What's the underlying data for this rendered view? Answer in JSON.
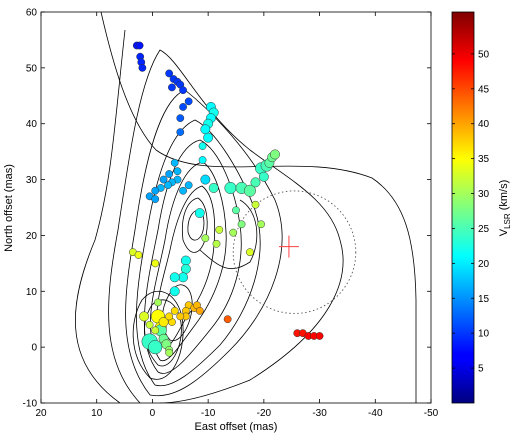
{
  "chart_data": {
    "type": "scatter",
    "xlabel": "East offset (mas)",
    "ylabel": "North offset (mas)",
    "xlim": [
      20,
      -50
    ],
    "ylim": [
      -10,
      60
    ],
    "xticks": [
      20,
      10,
      0,
      -10,
      -20,
      -30,
      -40,
      -50
    ],
    "yticks": [
      -10,
      0,
      10,
      20,
      30,
      40,
      50,
      60
    ],
    "colorbar": {
      "label_main": "V",
      "label_sub": "LSR",
      "label_unit": " (km/s)",
      "range": [
        0,
        56
      ],
      "ticks": [
        5,
        10,
        15,
        20,
        25,
        30,
        35,
        40,
        45,
        50
      ]
    },
    "marker_cross": {
      "x": -24.5,
      "y": 18,
      "color": "#ff4040"
    },
    "dotted_circle": {
      "cx": -25.5,
      "cy": 17,
      "r": 11
    },
    "series": [
      {
        "values": [
          {
            "x": 2.8,
            "y": 54,
            "v": 8,
            "s": 3
          },
          {
            "x": 2.3,
            "y": 54,
            "v": 8,
            "s": 3
          },
          {
            "x": 2.2,
            "y": 52,
            "v": 9,
            "s": 3
          },
          {
            "x": 2.0,
            "y": 51,
            "v": 9,
            "s": 3
          },
          {
            "x": 1.8,
            "y": 50,
            "v": 9,
            "s": 3
          },
          {
            "x": -3.0,
            "y": 49,
            "v": 10,
            "s": 3
          },
          {
            "x": -3.8,
            "y": 48,
            "v": 10,
            "s": 3
          },
          {
            "x": -4.5,
            "y": 47.5,
            "v": 10,
            "s": 3
          },
          {
            "x": -5.0,
            "y": 47,
            "v": 10,
            "s": 3
          },
          {
            "x": -3.5,
            "y": 46.5,
            "v": 10,
            "s": 3
          },
          {
            "x": -5.5,
            "y": 46,
            "v": 10,
            "s": 3
          },
          {
            "x": -6.5,
            "y": 44,
            "v": 11,
            "s": 3
          },
          {
            "x": -5.5,
            "y": 43,
            "v": 11,
            "s": 3
          },
          {
            "x": -5.0,
            "y": 41,
            "v": 12,
            "s": 3
          },
          {
            "x": -5.0,
            "y": 38.5,
            "v": 13,
            "s": 3
          },
          {
            "x": -9.5,
            "y": 30,
            "v": 19,
            "s": 4
          },
          {
            "x": -6.5,
            "y": 29,
            "v": 17,
            "s": 3
          },
          {
            "x": -5.5,
            "y": 28,
            "v": 17,
            "s": 3
          },
          {
            "x": -4.5,
            "y": 30,
            "v": 17,
            "s": 3
          },
          {
            "x": -4.5,
            "y": 31.5,
            "v": 17,
            "s": 3
          },
          {
            "x": -3.5,
            "y": 29.5,
            "v": 17,
            "s": 3
          },
          {
            "x": -4.0,
            "y": 33,
            "v": 17,
            "s": 3
          },
          {
            "x": -3.0,
            "y": 31,
            "v": 16,
            "s": 3
          },
          {
            "x": -2.8,
            "y": 29,
            "v": 17,
            "s": 3
          },
          {
            "x": -2.0,
            "y": 30,
            "v": 16,
            "s": 3
          },
          {
            "x": -1.5,
            "y": 28.5,
            "v": 17,
            "s": 3
          },
          {
            "x": -0.5,
            "y": 28,
            "v": 16,
            "s": 3
          },
          {
            "x": 0.5,
            "y": 27,
            "v": 16,
            "s": 3
          },
          {
            "x": -0.5,
            "y": 26.5,
            "v": 16,
            "s": 3
          },
          {
            "x": -10.5,
            "y": 43,
            "v": 21,
            "s": 4
          },
          {
            "x": -11.0,
            "y": 42,
            "v": 22,
            "s": 4
          },
          {
            "x": -10.5,
            "y": 41,
            "v": 21,
            "s": 4
          },
          {
            "x": -10.0,
            "y": 40,
            "v": 22,
            "s": 4
          },
          {
            "x": -9.5,
            "y": 39,
            "v": 21,
            "s": 4
          },
          {
            "x": -10.0,
            "y": 37.5,
            "v": 21,
            "s": 4
          },
          {
            "x": -9.0,
            "y": 36,
            "v": 22,
            "s": 3
          },
          {
            "x": -9.0,
            "y": 33.5,
            "v": 21,
            "s": 3
          },
          {
            "x": -8.5,
            "y": 24,
            "v": 22,
            "s": 4
          },
          {
            "x": -11.0,
            "y": 28.5,
            "v": 24,
            "s": 4
          },
          {
            "x": -14.0,
            "y": 28.5,
            "v": 24,
            "s": 5
          },
          {
            "x": -16.0,
            "y": 28.5,
            "v": 25,
            "s": 5
          },
          {
            "x": -17.5,
            "y": 28,
            "v": 26,
            "s": 5
          },
          {
            "x": -19.5,
            "y": 32,
            "v": 24,
            "s": 5
          },
          {
            "x": -20.5,
            "y": 32.5,
            "v": 25,
            "s": 5
          },
          {
            "x": -21.0,
            "y": 33,
            "v": 26,
            "s": 4
          },
          {
            "x": -21.5,
            "y": 34,
            "v": 27,
            "s": 4
          },
          {
            "x": -22.0,
            "y": 34.5,
            "v": 28,
            "s": 4
          },
          {
            "x": -20.0,
            "y": 30.5,
            "v": 24,
            "s": 4
          },
          {
            "x": -18.5,
            "y": 29.5,
            "v": 25,
            "s": 4
          },
          {
            "x": -6.0,
            "y": 15.5,
            "v": 22,
            "s": 4
          },
          {
            "x": -6.0,
            "y": 14,
            "v": 23,
            "s": 4
          },
          {
            "x": -5.5,
            "y": 12.5,
            "v": 22,
            "s": 4
          },
          {
            "x": -4.0,
            "y": 12.5,
            "v": 22,
            "s": 4
          },
          {
            "x": -4.0,
            "y": 10,
            "v": 22,
            "s": 4
          },
          {
            "x": -15.0,
            "y": 24.5,
            "v": 26,
            "s": 3
          },
          {
            "x": -16.0,
            "y": 22,
            "v": 28,
            "s": 3
          },
          {
            "x": -14.5,
            "y": 20.5,
            "v": 30,
            "s": 3
          },
          {
            "x": -12.0,
            "y": 21,
            "v": 32,
            "s": 3
          },
          {
            "x": -11.5,
            "y": 18.5,
            "v": 31,
            "s": 3
          },
          {
            "x": -9.5,
            "y": 19.5,
            "v": 30,
            "s": 3
          },
          {
            "x": -17.5,
            "y": 17,
            "v": 33,
            "s": 3
          },
          {
            "x": -19.5,
            "y": 22,
            "v": 30,
            "s": 3
          },
          {
            "x": -18.5,
            "y": 25.5,
            "v": 32,
            "s": 3
          },
          {
            "x": 3.5,
            "y": 17,
            "v": 33,
            "s": 3
          },
          {
            "x": 2.5,
            "y": 16.5,
            "v": 34,
            "s": 3
          },
          {
            "x": -0.5,
            "y": 15,
            "v": 34,
            "s": 3
          },
          {
            "x": -1.0,
            "y": 8,
            "v": 30,
            "s": 3
          },
          {
            "x": -6.5,
            "y": 7.5,
            "v": 38,
            "s": 3
          },
          {
            "x": -7.5,
            "y": 7,
            "v": 39,
            "s": 3
          },
          {
            "x": -8.0,
            "y": 7.5,
            "v": 39,
            "s": 3
          },
          {
            "x": -8.5,
            "y": 6.5,
            "v": 40,
            "s": 3
          },
          {
            "x": -6.0,
            "y": 6.5,
            "v": 38,
            "s": 3
          },
          {
            "x": -6.0,
            "y": 5.5,
            "v": 38,
            "s": 3
          },
          {
            "x": -5.0,
            "y": 5.5,
            "v": 38,
            "s": 3
          },
          {
            "x": -4.0,
            "y": 6.5,
            "v": 37,
            "s": 3
          },
          {
            "x": -3.5,
            "y": 4.5,
            "v": 37,
            "s": 3
          },
          {
            "x": -3.0,
            "y": 5.5,
            "v": 37,
            "s": 3
          },
          {
            "x": -2.0,
            "y": 4.5,
            "v": 36,
            "s": 4
          },
          {
            "x": -1.5,
            "y": 3.5,
            "v": 35,
            "s": 5
          },
          {
            "x": -1.0,
            "y": 5.5,
            "v": 35,
            "s": 6
          },
          {
            "x": -0.5,
            "y": 3,
            "v": 32,
            "s": 3
          },
          {
            "x": 0.5,
            "y": 4,
            "v": 32,
            "s": 3
          },
          {
            "x": 1.5,
            "y": 5.5,
            "v": 33,
            "s": 4
          },
          {
            "x": 0.5,
            "y": 1,
            "v": 24,
            "s": 7
          },
          {
            "x": -0.5,
            "y": 0,
            "v": 24,
            "s": 6
          },
          {
            "x": -1.5,
            "y": 3,
            "v": 26,
            "s": 5
          },
          {
            "x": -2.0,
            "y": 1.5,
            "v": 27,
            "s": 4
          },
          {
            "x": -2.5,
            "y": 0.5,
            "v": 28,
            "s": 4
          },
          {
            "x": -3.0,
            "y": -0.5,
            "v": 29,
            "s": 3
          },
          {
            "x": -3.0,
            "y": -1,
            "v": 30,
            "s": 3
          },
          {
            "x": -13.5,
            "y": 5,
            "v": 44,
            "s": 3
          },
          {
            "x": -26.0,
            "y": 2.5,
            "v": 48,
            "s": 3
          },
          {
            "x": -27.0,
            "y": 2.5,
            "v": 48,
            "s": 3
          },
          {
            "x": -28.0,
            "y": 2,
            "v": 49,
            "s": 3
          },
          {
            "x": -29.0,
            "y": 2,
            "v": 49,
            "s": 3
          },
          {
            "x": -30.0,
            "y": 2,
            "v": 49,
            "s": 3
          }
        ]
      }
    ]
  }
}
